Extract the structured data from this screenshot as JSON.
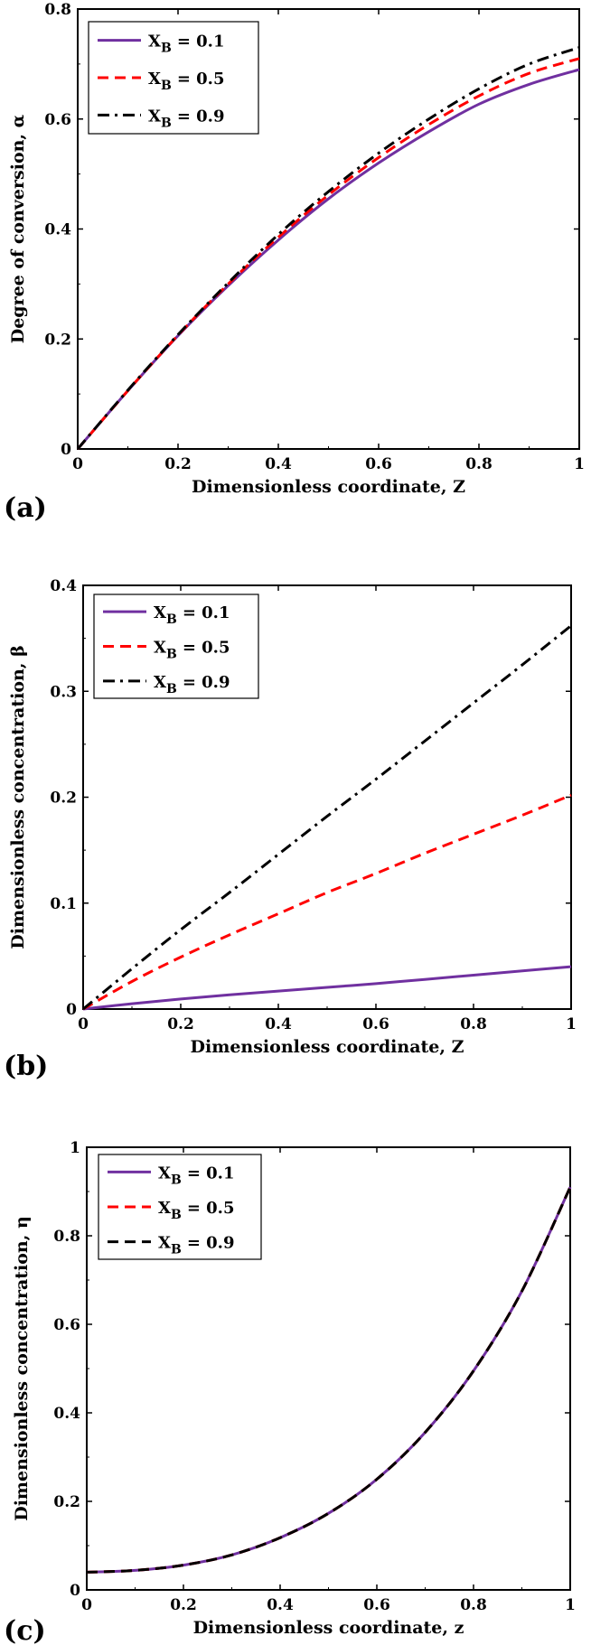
{
  "chart_data": [
    {
      "type": "line",
      "panel_label": "(a)",
      "xlabel": "Dimensionless coordinate, Z",
      "ylabel": "Degree of conversion, α",
      "xlim": [
        0,
        1
      ],
      "ylim": [
        0,
        0.8
      ],
      "xticks": [
        "0",
        "0.2",
        "0.4",
        "0.6",
        "0.8",
        "1"
      ],
      "yticks": [
        "0",
        "0.2",
        "0.4",
        "0.6",
        "0.8"
      ],
      "legend_position": "top-left",
      "series": [
        {
          "name": "X",
          "subscript": "B",
          "value_text": "= 0.1",
          "color": "#7030a0",
          "dash": "solid",
          "x": [
            0,
            0.1,
            0.2,
            0.3,
            0.4,
            0.5,
            0.6,
            0.7,
            0.8,
            0.9,
            1.0
          ],
          "y": [
            0,
            0.106,
            0.206,
            0.297,
            0.38,
            0.455,
            0.52,
            0.577,
            0.627,
            0.663,
            0.69
          ]
        },
        {
          "name": "X",
          "subscript": "B",
          "value_text": "= 0.5",
          "color": "#ff0000",
          "dash": "dashed",
          "x": [
            0,
            0.1,
            0.2,
            0.3,
            0.4,
            0.5,
            0.6,
            0.7,
            0.8,
            0.9,
            1.0
          ],
          "y": [
            0,
            0.106,
            0.207,
            0.3,
            0.385,
            0.462,
            0.53,
            0.59,
            0.642,
            0.683,
            0.71
          ]
        },
        {
          "name": "X",
          "subscript": "B",
          "value_text": "= 0.9",
          "color": "#000000",
          "dash": "dashdot",
          "x": [
            0,
            0.1,
            0.2,
            0.3,
            0.4,
            0.5,
            0.6,
            0.7,
            0.8,
            0.9,
            1.0
          ],
          "y": [
            0,
            0.107,
            0.208,
            0.302,
            0.39,
            0.468,
            0.538,
            0.6,
            0.655,
            0.7,
            0.73
          ]
        }
      ]
    },
    {
      "type": "line",
      "panel_label": "(b)",
      "xlabel": "Dimensionless coordinate, Z",
      "ylabel": "Dimensionless concentration, β",
      "xlim": [
        0,
        1
      ],
      "ylim": [
        0,
        0.4
      ],
      "xticks": [
        "0",
        "0.2",
        "0.4",
        "0.6",
        "0.8",
        "1"
      ],
      "yticks": [
        "0",
        "0.1",
        "0.2",
        "0.3",
        "0.4"
      ],
      "legend_position": "top-left",
      "series": [
        {
          "name": "X",
          "subscript": "B",
          "value_text": "= 0.1",
          "color": "#7030a0",
          "dash": "solid",
          "x": [
            0,
            0.1,
            0.2,
            0.3,
            0.4,
            0.5,
            0.6,
            0.7,
            0.8,
            0.9,
            1.0
          ],
          "y": [
            0,
            0.005,
            0.0095,
            0.0135,
            0.017,
            0.0205,
            0.024,
            0.028,
            0.032,
            0.036,
            0.04
          ]
        },
        {
          "name": "X",
          "subscript": "B",
          "value_text": "= 0.5",
          "color": "#ff0000",
          "dash": "dashed",
          "x": [
            0,
            0.1,
            0.2,
            0.3,
            0.4,
            0.5,
            0.6,
            0.7,
            0.8,
            0.9,
            1.0
          ],
          "y": [
            0,
            0.026,
            0.049,
            0.07,
            0.09,
            0.11,
            0.128,
            0.147,
            0.165,
            0.183,
            0.202
          ]
        },
        {
          "name": "X",
          "subscript": "B",
          "value_text": "= 0.9",
          "color": "#000000",
          "dash": "dashdot",
          "x": [
            0,
            0.1,
            0.2,
            0.3,
            0.4,
            0.5,
            0.6,
            0.7,
            0.8,
            0.9,
            1.0
          ],
          "y": [
            0,
            0.038,
            0.075,
            0.11,
            0.146,
            0.182,
            0.217,
            0.253,
            0.289,
            0.325,
            0.362
          ]
        }
      ]
    },
    {
      "type": "line",
      "panel_label": "(c)",
      "xlabel": "Dimensionless coordinate, z",
      "ylabel": "Dimensionless concentration, η",
      "xlim": [
        0,
        1
      ],
      "ylim": [
        0,
        1
      ],
      "xticks": [
        "0",
        "0.2",
        "0.4",
        "0.6",
        "0.8",
        "1"
      ],
      "yticks": [
        "0",
        "0.2",
        "0.4",
        "0.6",
        "0.8",
        "1"
      ],
      "legend_position": "top-left",
      "series": [
        {
          "name": "X",
          "subscript": "B",
          "value_text": "= 0.1",
          "color": "#7030a0",
          "dash": "solid",
          "x": [
            0,
            0.1,
            0.2,
            0.3,
            0.4,
            0.5,
            0.6,
            0.7,
            0.8,
            0.9,
            1.0
          ],
          "y": [
            0.04,
            0.044,
            0.056,
            0.079,
            0.118,
            0.173,
            0.25,
            0.356,
            0.495,
            0.675,
            0.91
          ]
        },
        {
          "name": "X",
          "subscript": "B",
          "value_text": "= 0.5",
          "color": "#ff0000",
          "dash": "dashed",
          "x": [
            0,
            0.1,
            0.2,
            0.3,
            0.4,
            0.5,
            0.6,
            0.7,
            0.8,
            0.9,
            1.0
          ],
          "y": [
            0.04,
            0.044,
            0.056,
            0.079,
            0.118,
            0.173,
            0.25,
            0.356,
            0.495,
            0.675,
            0.91
          ]
        },
        {
          "name": "X",
          "subscript": "B",
          "value_text": "= 0.9",
          "color": "#000000",
          "dash": "dashed",
          "x": [
            0,
            0.1,
            0.2,
            0.3,
            0.4,
            0.5,
            0.6,
            0.7,
            0.8,
            0.9,
            1.0
          ],
          "y": [
            0.04,
            0.044,
            0.056,
            0.079,
            0.118,
            0.173,
            0.25,
            0.356,
            0.495,
            0.675,
            0.91
          ]
        }
      ]
    }
  ]
}
